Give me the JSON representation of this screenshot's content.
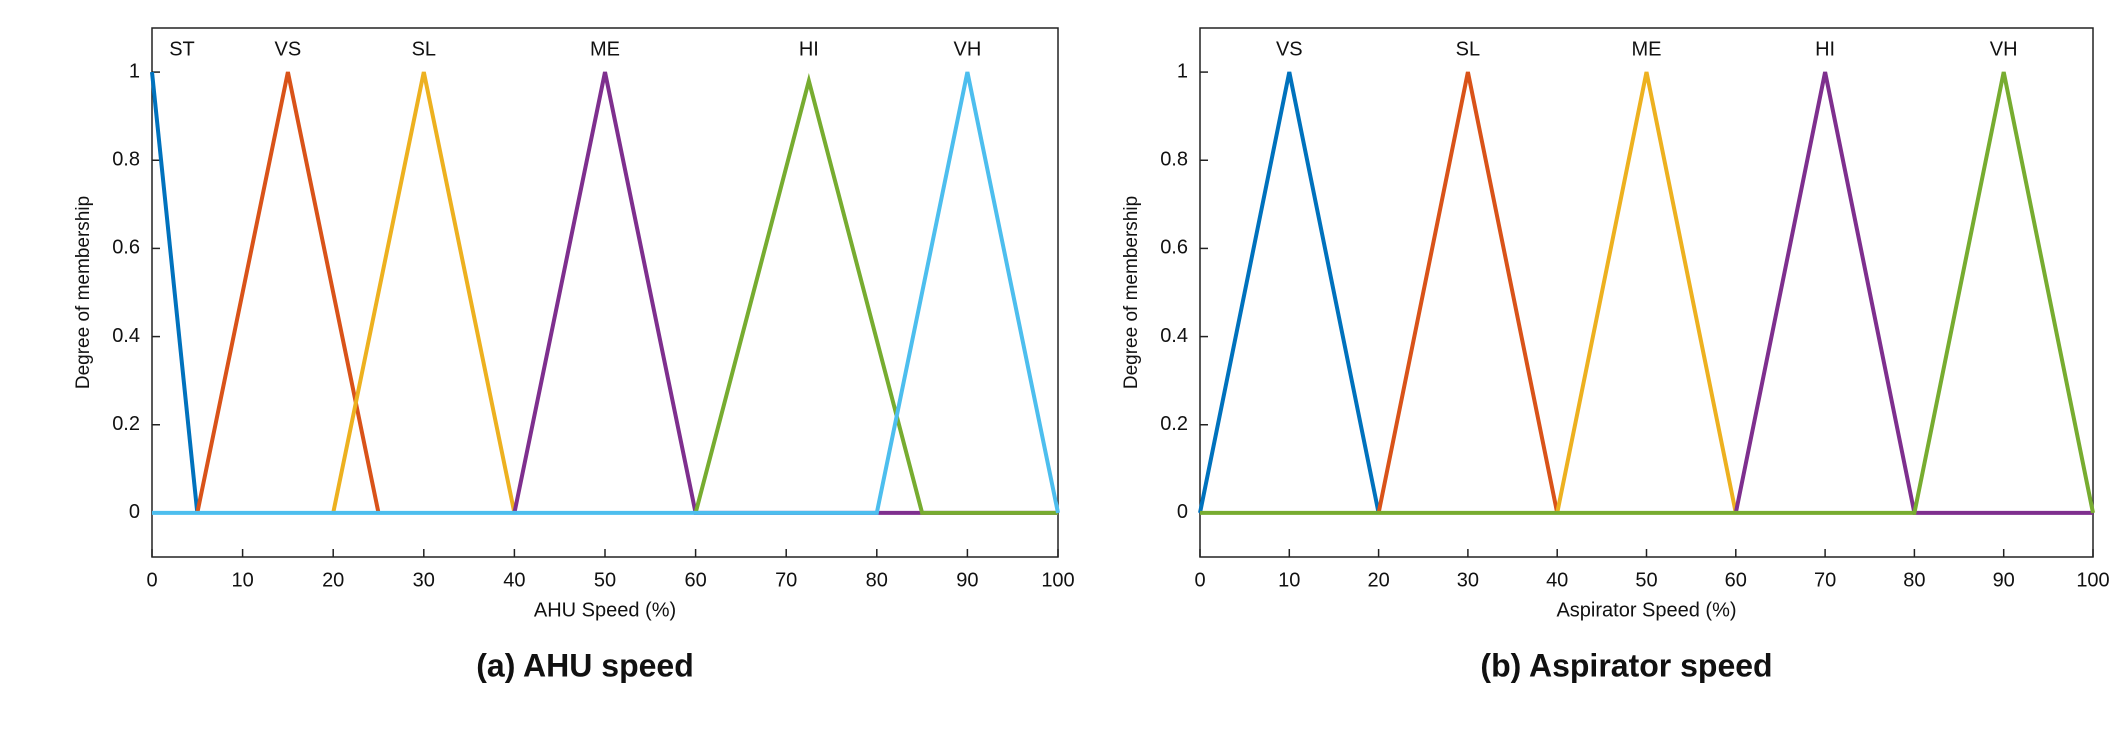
{
  "chart_data": [
    {
      "type": "line",
      "caption": "(a) AHU speed",
      "x_label": "AHU Speed (%)",
      "y_label": "Degree of membership",
      "xlim": [
        0,
        100
      ],
      "ylim": [
        -0.1,
        1.1
      ],
      "xticks": [
        0,
        10,
        20,
        30,
        40,
        50,
        60,
        70,
        80,
        90,
        100
      ],
      "yticks": [
        0,
        0.2,
        0.4,
        0.6,
        0.8,
        1
      ],
      "series": [
        {
          "name": "ST",
          "color": "#0072bd",
          "x": [
            0,
            5
          ],
          "values": [
            1,
            0
          ]
        },
        {
          "name": "VS",
          "color": "#d95319",
          "x": [
            5,
            15,
            25
          ],
          "values": [
            0,
            1,
            0
          ]
        },
        {
          "name": "SL",
          "color": "#edb120",
          "x": [
            20,
            30,
            40
          ],
          "values": [
            0,
            1,
            0
          ]
        },
        {
          "name": "ME",
          "color": "#7e2f8e",
          "x": [
            40,
            50,
            60,
            100
          ],
          "values": [
            0,
            1,
            0,
            0
          ]
        },
        {
          "name": "HI",
          "color": "#77ac30",
          "x": [
            60,
            72.5,
            85,
            100
          ],
          "values": [
            0,
            0.98,
            0,
            0
          ]
        },
        {
          "name": "VH",
          "color": "#4dbeee",
          "x": [
            0,
            80,
            90,
            100
          ],
          "values": [
            0,
            0,
            1,
            0
          ]
        }
      ]
    },
    {
      "type": "line",
      "caption": "(b) Aspirator speed",
      "x_label": "Aspirator Speed (%)",
      "y_label": "Degree of membership",
      "xlim": [
        0,
        100
      ],
      "ylim": [
        -0.1,
        1.1
      ],
      "xticks": [
        0,
        10,
        20,
        30,
        40,
        50,
        60,
        70,
        80,
        90,
        100
      ],
      "yticks": [
        0,
        0.2,
        0.4,
        0.6,
        0.8,
        1
      ],
      "series": [
        {
          "name": "VS",
          "color": "#0072bd",
          "x": [
            0,
            10,
            20
          ],
          "values": [
            0,
            1,
            0
          ]
        },
        {
          "name": "SL",
          "color": "#d95319",
          "x": [
            20,
            30,
            40
          ],
          "values": [
            0,
            1,
            0
          ]
        },
        {
          "name": "ME",
          "color": "#edb120",
          "x": [
            40,
            50,
            60
          ],
          "values": [
            0,
            1,
            0
          ]
        },
        {
          "name": "HI",
          "color": "#7e2f8e",
          "x": [
            60,
            70,
            80,
            100
          ],
          "values": [
            0,
            1,
            0,
            0
          ]
        },
        {
          "name": "VH",
          "color": "#77ac30",
          "x": [
            0,
            80,
            90,
            100
          ],
          "values": [
            0,
            0,
            1,
            0
          ]
        }
      ]
    }
  ]
}
